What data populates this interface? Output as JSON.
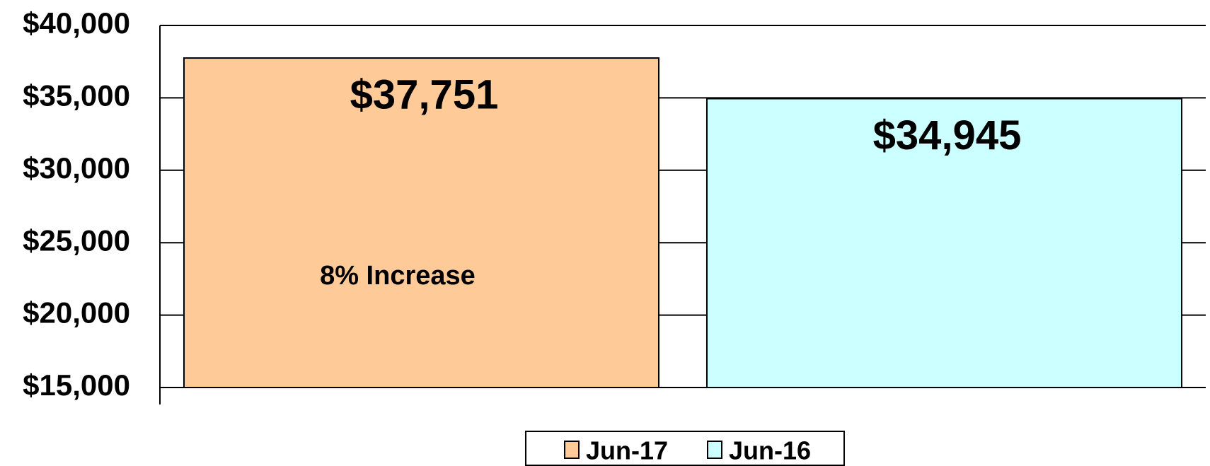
{
  "chart_data": {
    "type": "bar",
    "categories": [
      null
    ],
    "series": [
      {
        "name": "Jun-17",
        "color": "#fdca98",
        "values": [
          37751
        ],
        "value_labels": [
          "$37,751"
        ]
      },
      {
        "name": "Jun-16",
        "color": "#ccffff",
        "values": [
          34945
        ],
        "value_labels": [
          "$34,945"
        ]
      }
    ],
    "annotations": [
      "8% Increase"
    ],
    "ylim": [
      15000,
      40000
    ],
    "yticks": [
      {
        "value": 15000,
        "label": "$15,000"
      },
      {
        "value": 20000,
        "label": "$20,000"
      },
      {
        "value": 25000,
        "label": "$25,000"
      },
      {
        "value": 30000,
        "label": "$30,000"
      },
      {
        "value": 35000,
        "label": "$35,000"
      },
      {
        "value": 40000,
        "label": "$40,000"
      }
    ],
    "grid": true,
    "legend": "bottom"
  }
}
